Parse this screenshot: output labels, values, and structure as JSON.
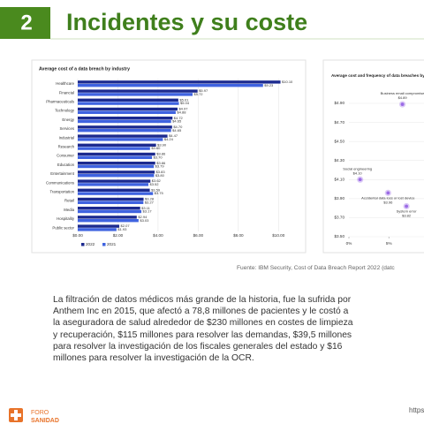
{
  "slide": {
    "number": "2",
    "title": "Incidentes y su coste",
    "source": "Fuente: IBM Security, Cost of Data Breach Report 2022 (datc",
    "body": "La filtración de datos médicos más grande de la historia, fue la sufrida por Anthem Inc en 2015, que afectó a 78,8 millones de pacientes y le costó a la aseguradora de salud alrededor de $230 millones en costes de limpieza y recuperación, $115 millones para resolver las demandas, $39,5 millones para resolver la investigación de los fiscales generales del estado y $16 millones para resolver la investigación de la OCR.",
    "logo": [
      "FORO",
      "SANIDAD"
    ],
    "link": "https"
  },
  "chart_data": [
    {
      "type": "bar",
      "title": "Average cost of a data breach by industry",
      "categories": [
        "Healthcare",
        "Financial",
        "Pharmaceuticals",
        "Technology",
        "Energy",
        "Services",
        "Industrial",
        "Research",
        "Consumer",
        "Education",
        "Entertainment",
        "Communications",
        "Transportation",
        "Retail",
        "Media",
        "Hospitality",
        "Public sector"
      ],
      "series": [
        {
          "name": "2022",
          "color": "#1c2a8f",
          "values": [
            10.1,
            5.97,
            5.01,
            4.97,
            4.72,
            4.7,
            4.47,
            3.9,
            3.86,
            3.86,
            3.83,
            3.62,
            3.59,
            3.28,
            3.11,
            2.94,
            2.07
          ],
          "value_labels": [
            "$10.10",
            "$5.97",
            "$5.01",
            "$4.97",
            "$4.72",
            "$4.70",
            "$4.47",
            "$3.90",
            "$3.86",
            "$3.86",
            "$3.83",
            "$3.62",
            "$3.59",
            "$3.28",
            "$3.11",
            "$2.94",
            "$2.07"
          ]
        },
        {
          "name": "2021",
          "color": "#3f63e0",
          "values": [
            9.23,
            5.72,
            5.04,
            4.88,
            4.65,
            4.65,
            4.24,
            3.6,
            3.7,
            3.79,
            3.8,
            3.52,
            3.75,
            3.27,
            3.17,
            3.03,
            1.93
          ],
          "value_labels": [
            "$9.23",
            "$5.72",
            "$5.04",
            "$4.88",
            "$4.65",
            "$4.65",
            "$4.24",
            "$3.60",
            "$3.70",
            "$3.79",
            "$3.80",
            "$3.52",
            "$3.75",
            "$3.27",
            "$3.17",
            "$3.03",
            "$1.93"
          ]
        }
      ],
      "xlim": [
        0,
        11
      ],
      "xticks": [
        {
          "value": 0,
          "label": "$0.00"
        },
        {
          "value": 2,
          "label": "$2.00"
        },
        {
          "value": 4,
          "label": "$4.00"
        },
        {
          "value": 6,
          "label": "$6.00"
        },
        {
          "value": 8,
          "label": "$8.00"
        },
        {
          "value": 10,
          "label": "$10.00"
        }
      ],
      "grid": true,
      "legend": "bottom"
    },
    {
      "type": "scatter",
      "title": "Average cost and frequency of data breaches by initial attack vector",
      "labels": [
        "Business email compromise",
        "Social engineering",
        "Accidental data loss or lost device",
        "System error"
      ],
      "x": [
        6.7,
        1.4,
        4.9,
        7.2
      ],
      "values": [
        4.89,
        4.1,
        3.96,
        3.82
      ],
      "value_labels": [
        "$4.89",
        "$4.10",
        "$3.96",
        "$3.82"
      ],
      "color": "#9b6be6",
      "xlim": [
        0,
        9.4
      ],
      "xticks": [
        {
          "value": 0,
          "label": "0%"
        },
        {
          "value": 5,
          "label": "5%"
        }
      ],
      "ylim": [
        3.5,
        4.9
      ],
      "yticks": [
        {
          "value": 3.5,
          "label": "$3.50"
        },
        {
          "value": 3.7,
          "label": "$3.70"
        },
        {
          "value": 3.9,
          "label": "$3.90"
        },
        {
          "value": 4.1,
          "label": "$4.10"
        },
        {
          "value": 4.3,
          "label": "$4.30"
        },
        {
          "value": 4.5,
          "label": "$4.50"
        },
        {
          "value": 4.7,
          "label": "$4.70"
        },
        {
          "value": 4.9,
          "label": "$4.90"
        }
      ],
      "grid": true
    }
  ]
}
